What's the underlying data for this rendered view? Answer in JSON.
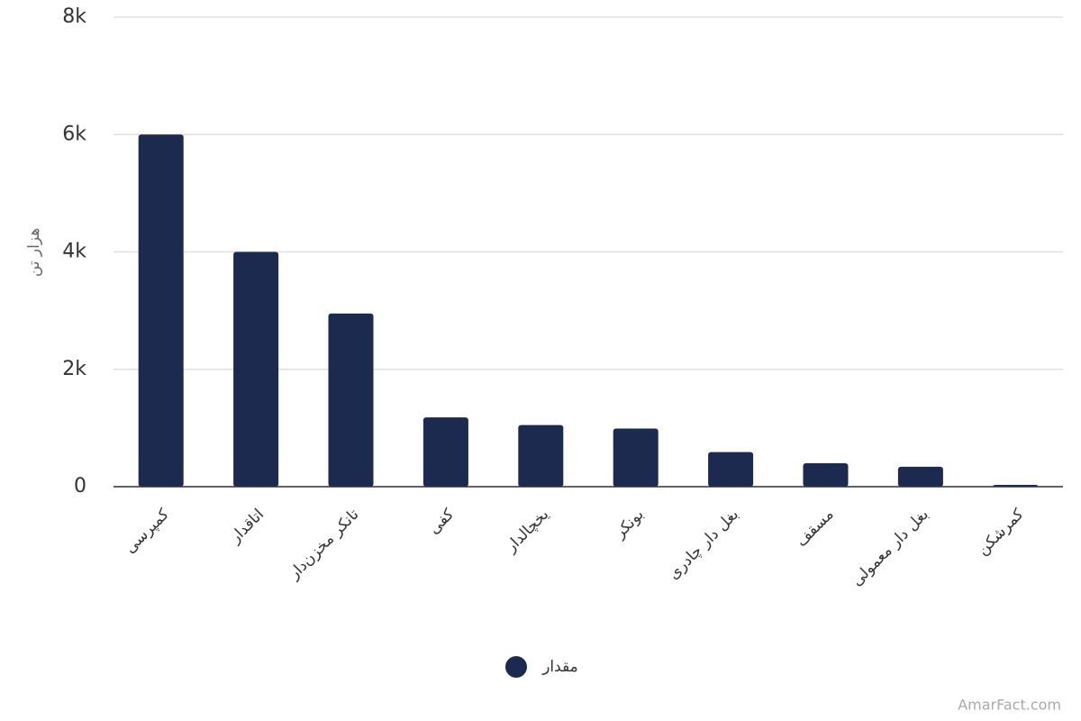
{
  "chart_data": {
    "type": "bar",
    "y_label": "هزار تن",
    "categories": [
      "کمپرسی",
      "اتاقدار",
      "تانکر مخزن‌دار",
      "کفی",
      "یخچالدار",
      "بونکر",
      "بغل دار چادری",
      "مسقف",
      "بغل دار معمولی",
      "کمرشکن"
    ],
    "series": [
      {
        "name": "مقدار",
        "color": "#1b2a4e",
        "values": [
          6000,
          4000,
          2950,
          1180,
          1050,
          990,
          590,
          400,
          340,
          30
        ]
      }
    ],
    "ylim": [
      0,
      8000
    ],
    "yticks": [
      0,
      {
        "value": 2000,
        "label": "2k"
      },
      {
        "value": 4000,
        "label": "4k"
      },
      {
        "value": 6000,
        "label": "6k"
      },
      {
        "value": 8000,
        "label": "8k"
      }
    ],
    "grid": true,
    "watermark": "AmarFact.com"
  }
}
